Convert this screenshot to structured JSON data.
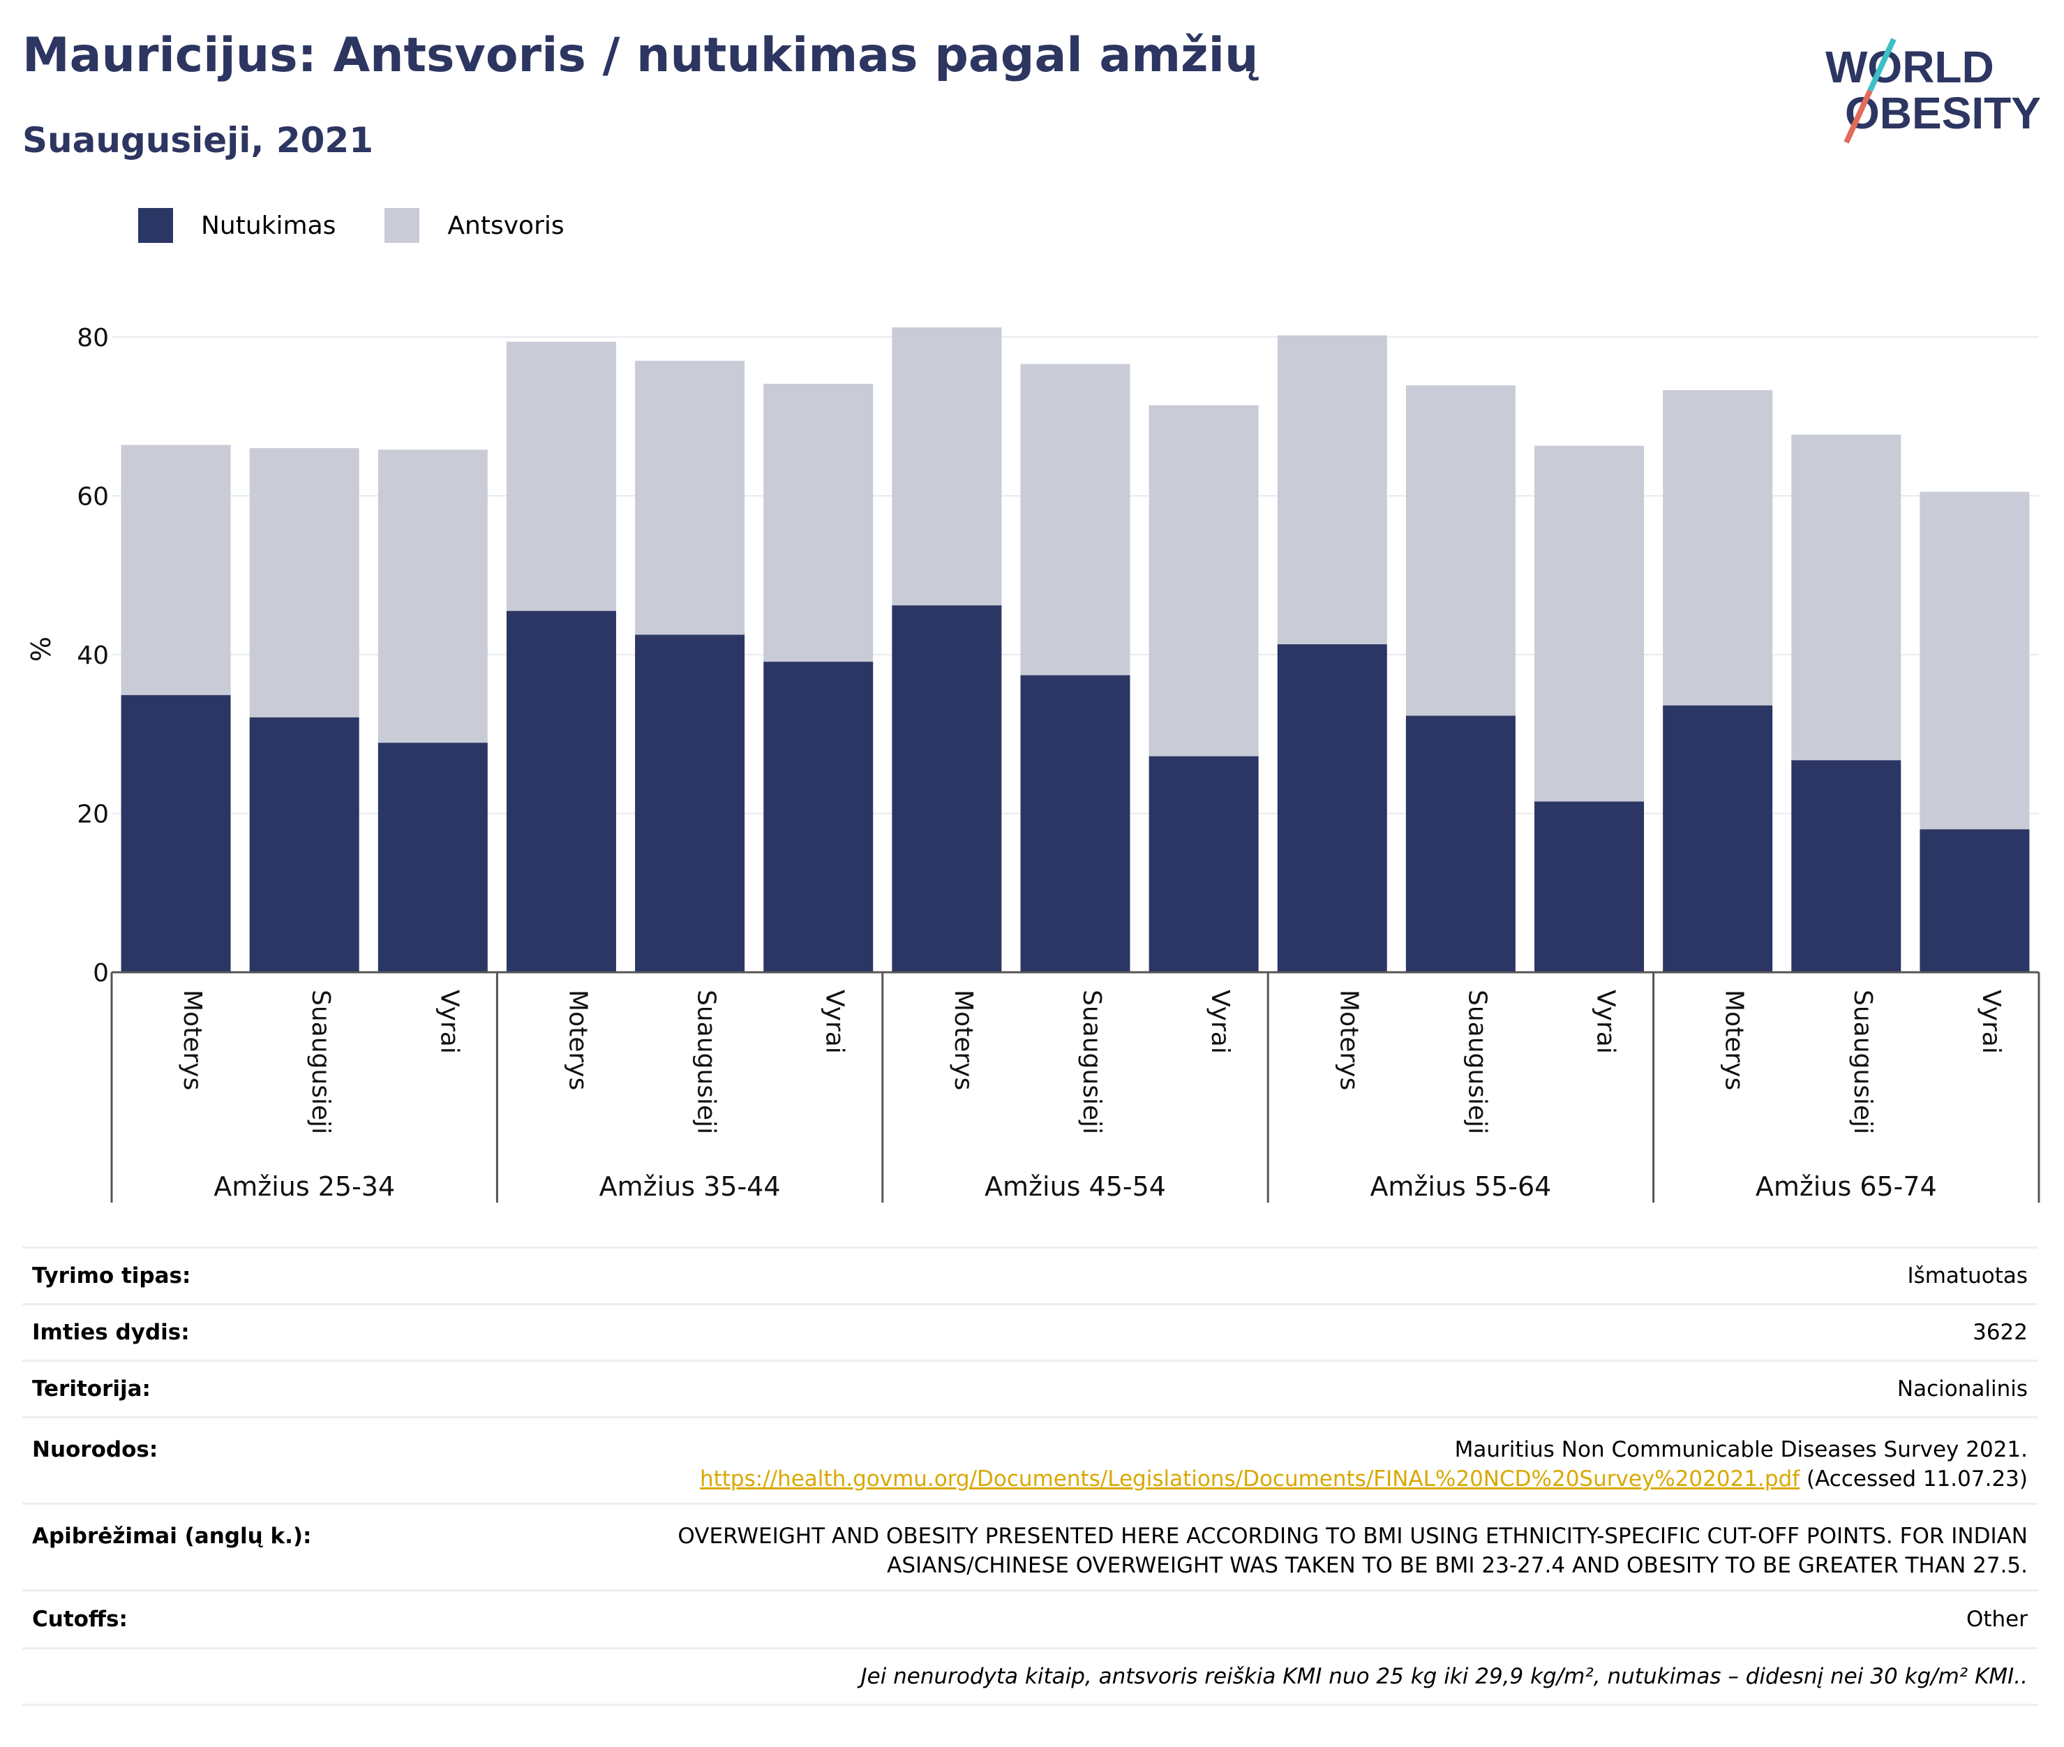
{
  "title": "Mauricijus: Antsvoris / nutukimas pagal amžių",
  "subtitle": "Suaugusieji, 2021",
  "logo": {
    "line1": "WORLD",
    "line2": "OBESITY"
  },
  "colors": {
    "obesity": "#2b3664",
    "overweight": "#c9cbd7",
    "accent": "#e36b5a",
    "teal": "#3dbfc7",
    "navy": "#2d3561"
  },
  "legend": {
    "obesity": "Nutukimas",
    "overweight": "Antsvoris"
  },
  "chart_data": {
    "type": "bar",
    "stacked": true,
    "ylabel": "%",
    "ylim": [
      0,
      82
    ],
    "yticks": [
      0,
      20,
      40,
      60,
      80
    ],
    "grid": true,
    "legend_position": "top-left",
    "groups": [
      "Amžius 25-34",
      "Amžius 35-44",
      "Amžius 45-54",
      "Amžius 55-64",
      "Amžius 65-74"
    ],
    "subcategories": [
      "Moterys",
      "Suaugusieji",
      "Vyrai"
    ],
    "series": [
      {
        "name": "Nutukimas",
        "values": [
          34.9,
          32.1,
          28.9,
          45.5,
          42.5,
          39.1,
          46.2,
          37.4,
          27.2,
          41.3,
          32.3,
          21.5,
          33.6,
          26.7,
          18.0
        ]
      },
      {
        "name": "Antsvoris",
        "values": [
          31.5,
          33.9,
          36.9,
          33.9,
          34.5,
          35.0,
          35.0,
          39.2,
          44.2,
          38.9,
          41.6,
          44.8,
          39.7,
          41.0,
          42.5
        ]
      }
    ]
  },
  "meta": {
    "survey_type": {
      "label": "Tyrimo tipas:",
      "value": "Išmatuotas"
    },
    "sample_size": {
      "label": "Imties dydis:",
      "value": "3622"
    },
    "territory": {
      "label": "Teritorija:",
      "value": "Nacionalinis"
    },
    "references": {
      "label": "Nuorodos:",
      "line1": "Mauritius Non Communicable Diseases Survey 2021.",
      "link": "https://health.govmu.org/Documents/Legislations/Documents/FINAL%20NCD%20Survey%202021.pdf",
      "accessed": " (Accessed 11.07.23)"
    },
    "definitions": {
      "label": "Apibrėžimai (anglų k.):",
      "line1": "OVERWEIGHT AND OBESITY PRESENTED HERE ACCORDING TO BMI USING ETHNICITY-SPECIFIC CUT-OFF POINTS. FOR INDIAN",
      "line2": "ASIANS/CHINESE OVERWEIGHT WAS TAKEN TO BE BMI 23-27.4 AND OBESITY TO BE GREATER THAN 27.5."
    },
    "cutoffs": {
      "label": "Cutoffs:",
      "value": "Other"
    },
    "footnote": "Jei nenurodyta kitaip, antsvoris reiškia KMI nuo 25 kg iki 29,9 kg/m², nutukimas – didesnį nei 30 kg/m² KMI.."
  }
}
